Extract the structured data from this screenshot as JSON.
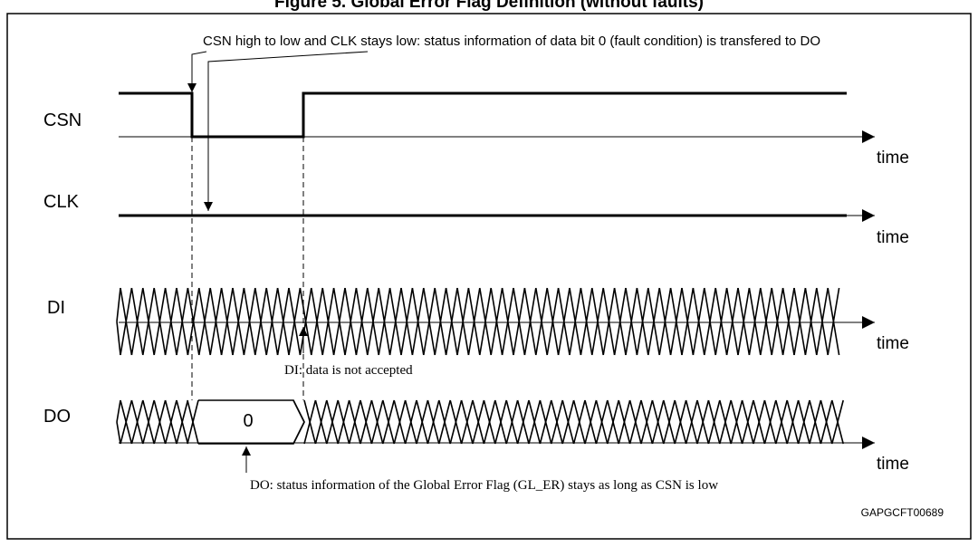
{
  "title": "Figure 5. Global Error Flag Definition (without faults)",
  "signals": {
    "csn": "CSN",
    "clk": "CLK",
    "di": "DI",
    "do": "DO"
  },
  "axis_label": "time",
  "do_value": "0",
  "annotations": {
    "top": "CSN high to low and CLK stays low: status information of data bit 0 (fault condition) is transfered to DO",
    "di": "DI: data is not accepted",
    "do": "DO: status information of the Global Error Flag (GL_ER) stays as long as CSN is low"
  },
  "figure_id": "GAPGCFT00689"
}
